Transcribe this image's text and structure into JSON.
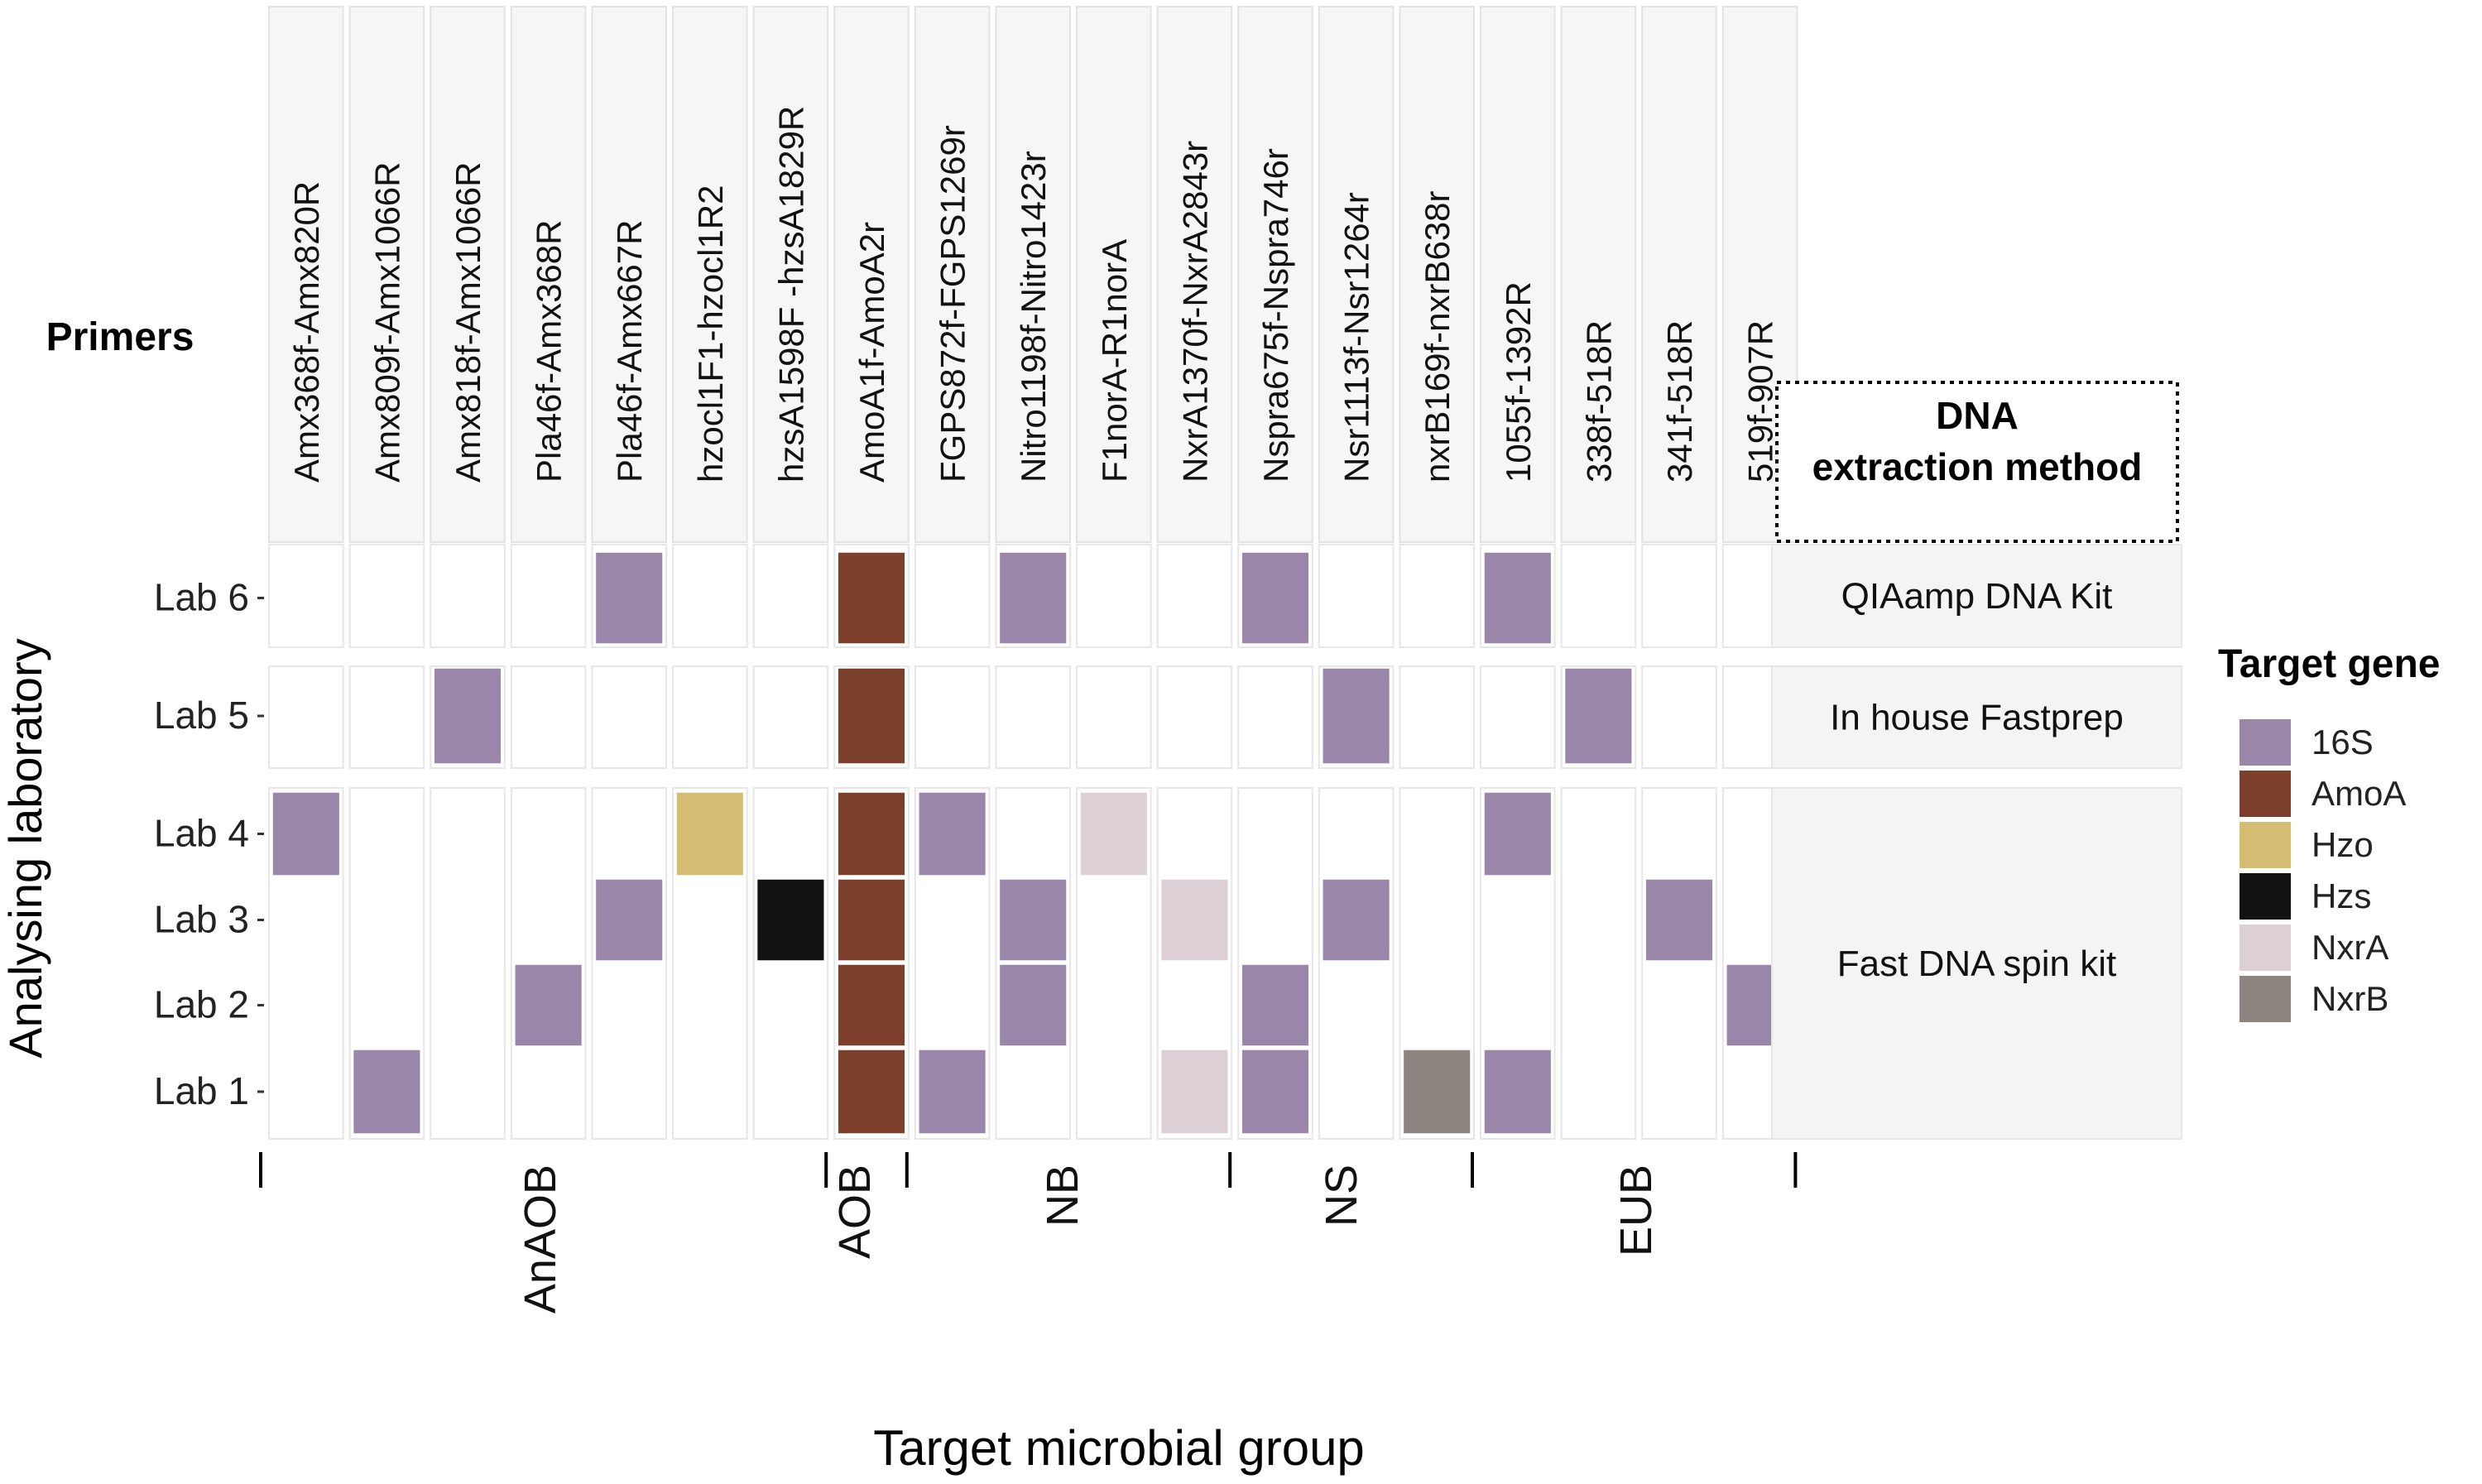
{
  "chart_data": {
    "type": "heatmap",
    "primers_label": "Primers",
    "primers": [
      "Amx368f-Amx820R",
      "Amx809f-Amx1066R",
      "Amx818f-Amx1066R",
      "Pla46f-Amx368R",
      "Pla46f-Amx667R",
      "hzocl1F1-hzocl1R2",
      "hzsA1598F -hzsA1829R",
      "AmoA1f-AmoA2r",
      "FGPS872f-FGPS1269r",
      "Nitro1198f-Nitro1423r",
      "F1norA-R1norA",
      "NxrA1370f-NxrA2843r",
      "Nspra675f-Nspra746r",
      "Nsr1113f-Nsr1264r",
      "nxrB169f-nxrB638r",
      "1055f-1392R",
      "338f-518R",
      "341f-518R",
      "519f-907R"
    ],
    "labs": [
      "Lab 6",
      "Lab 5",
      "Lab 4",
      "Lab 3",
      "Lab 2",
      "Lab 1"
    ],
    "dna_extraction_title_line1": "DNA",
    "dna_extraction_title_line2": "extraction method",
    "extraction_methods": [
      {
        "label": "QIAamp DNA Kit",
        "labs": [
          "Lab 6"
        ]
      },
      {
        "label": "In house Fastprep",
        "labs": [
          "Lab 5"
        ]
      },
      {
        "label": "Fast DNA spin kit",
        "labs": [
          "Lab 4",
          "Lab 3",
          "Lab 2",
          "Lab 1"
        ]
      }
    ],
    "cells": [
      {
        "lab": "Lab 6",
        "primer": "Pla46f-Amx667R",
        "gene": "16S"
      },
      {
        "lab": "Lab 6",
        "primer": "AmoA1f-AmoA2r",
        "gene": "AmoA"
      },
      {
        "lab": "Lab 6",
        "primer": "Nitro1198f-Nitro1423r",
        "gene": "16S"
      },
      {
        "lab": "Lab 6",
        "primer": "Nspra675f-Nspra746r",
        "gene": "16S"
      },
      {
        "lab": "Lab 6",
        "primer": "1055f-1392R",
        "gene": "16S"
      },
      {
        "lab": "Lab 5",
        "primer": "Amx818f-Amx1066R",
        "gene": "16S"
      },
      {
        "lab": "Lab 5",
        "primer": "AmoA1f-AmoA2r",
        "gene": "AmoA"
      },
      {
        "lab": "Lab 5",
        "primer": "Nsr1113f-Nsr1264r",
        "gene": "16S"
      },
      {
        "lab": "Lab 5",
        "primer": "338f-518R",
        "gene": "16S"
      },
      {
        "lab": "Lab 4",
        "primer": "Amx368f-Amx820R",
        "gene": "16S"
      },
      {
        "lab": "Lab 4",
        "primer": "hzocl1F1-hzocl1R2",
        "gene": "Hzo"
      },
      {
        "lab": "Lab 4",
        "primer": "AmoA1f-AmoA2r",
        "gene": "AmoA"
      },
      {
        "lab": "Lab 4",
        "primer": "FGPS872f-FGPS1269r",
        "gene": "16S"
      },
      {
        "lab": "Lab 4",
        "primer": "F1norA-R1norA",
        "gene": "NxrA"
      },
      {
        "lab": "Lab 4",
        "primer": "1055f-1392R",
        "gene": "16S"
      },
      {
        "lab": "Lab 3",
        "primer": "Pla46f-Amx667R",
        "gene": "16S"
      },
      {
        "lab": "Lab 3",
        "primer": "hzsA1598F -hzsA1829R",
        "gene": "Hzs"
      },
      {
        "lab": "Lab 3",
        "primer": "AmoA1f-AmoA2r",
        "gene": "AmoA"
      },
      {
        "lab": "Lab 3",
        "primer": "Nitro1198f-Nitro1423r",
        "gene": "16S"
      },
      {
        "lab": "Lab 3",
        "primer": "NxrA1370f-NxrA2843r",
        "gene": "NxrA"
      },
      {
        "lab": "Lab 3",
        "primer": "Nsr1113f-Nsr1264r",
        "gene": "16S"
      },
      {
        "lab": "Lab 3",
        "primer": "341f-518R",
        "gene": "16S"
      },
      {
        "lab": "Lab 2",
        "primer": "Pla46f-Amx368R",
        "gene": "16S"
      },
      {
        "lab": "Lab 2",
        "primer": "AmoA1f-AmoA2r",
        "gene": "AmoA"
      },
      {
        "lab": "Lab 2",
        "primer": "Nitro1198f-Nitro1423r",
        "gene": "16S"
      },
      {
        "lab": "Lab 2",
        "primer": "Nspra675f-Nspra746r",
        "gene": "16S"
      },
      {
        "lab": "Lab 2",
        "primer": "519f-907R",
        "gene": "16S"
      },
      {
        "lab": "Lab 1",
        "primer": "Amx809f-Amx1066R",
        "gene": "16S"
      },
      {
        "lab": "Lab 1",
        "primer": "AmoA1f-AmoA2r",
        "gene": "AmoA"
      },
      {
        "lab": "Lab 1",
        "primer": "FGPS872f-FGPS1269r",
        "gene": "16S"
      },
      {
        "lab": "Lab 1",
        "primer": "NxrA1370f-NxrA2843r",
        "gene": "NxrA"
      },
      {
        "lab": "Lab 1",
        "primer": "Nspra675f-Nspra746r",
        "gene": "16S"
      },
      {
        "lab": "Lab 1",
        "primer": "nxrB169f-nxrB638r",
        "gene": "NxrB"
      },
      {
        "lab": "Lab 1",
        "primer": "1055f-1392R",
        "gene": "16S"
      }
    ],
    "groups": [
      {
        "label": "AnAOB",
        "from": 0,
        "to": 6
      },
      {
        "label": "AOB",
        "from": 7,
        "to": 7
      },
      {
        "label": "NB",
        "from": 8,
        "to": 11
      },
      {
        "label": "NS",
        "from": 12,
        "to": 14
      },
      {
        "label": "EUB",
        "from": 15,
        "to": 18
      }
    ],
    "legend": {
      "title": "Target gene",
      "placement": "right",
      "items": [
        {
          "label": "16S",
          "color": "#9a86a8"
        },
        {
          "label": "AmoA",
          "color": "#7b3f2b"
        },
        {
          "label": "Hzo",
          "color": "#d4bd72"
        },
        {
          "label": "Hzs",
          "color": "#111111"
        },
        {
          "label": "NxrA",
          "color": "#dccfd6"
        },
        {
          "label": "NxrB",
          "color": "#8d8680"
        }
      ]
    },
    "xlabel": "Target microbial group",
    "ylabel": "Analysing laboratory"
  }
}
